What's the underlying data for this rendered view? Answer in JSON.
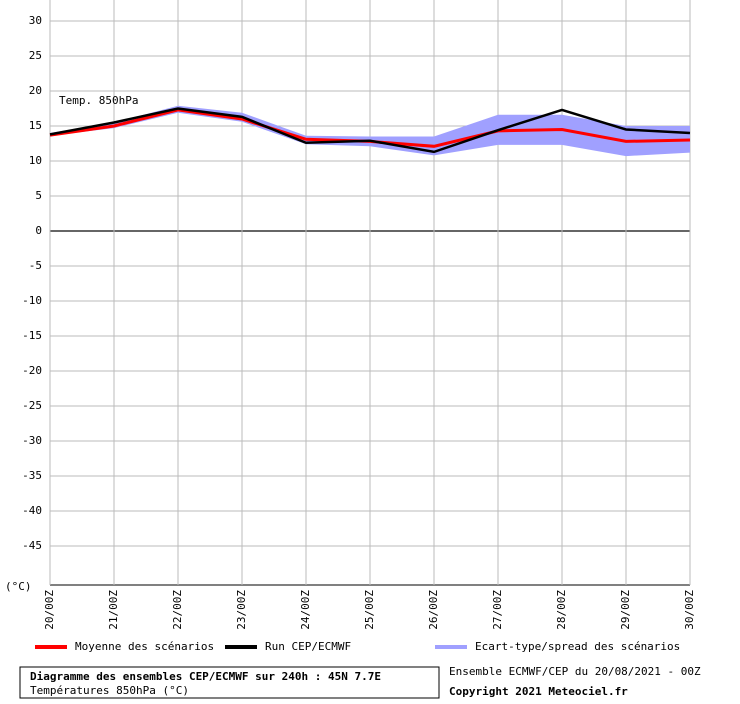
{
  "chart_data": {
    "type": "line",
    "annotation": "Temp. 850hPa",
    "y_label": "(°C)",
    "categories": [
      "20/00Z",
      "21/00Z",
      "22/00Z",
      "23/00Z",
      "24/00Z",
      "25/00Z",
      "26/00Z",
      "27/00Z",
      "28/00Z",
      "29/00Z",
      "30/00Z"
    ],
    "series": [
      {
        "name": "Moyenne des scénarios",
        "color": "#ff0000",
        "values": [
          13.7,
          15.0,
          17.3,
          16.0,
          13.1,
          12.8,
          12.1,
          14.3,
          14.5,
          12.8,
          13.0
        ]
      },
      {
        "name": "Run CEP/ECMWF",
        "color": "#000000",
        "values": [
          13.8,
          15.5,
          17.5,
          16.3,
          12.6,
          12.9,
          11.3,
          14.4,
          17.3,
          14.5,
          14.0
        ]
      },
      {
        "name": "Ecart-type/spread des scénarios",
        "color": "#a0a0ff",
        "values": [
          14.0,
          15.5,
          17.9,
          16.9,
          13.6,
          13.5,
          13.5,
          16.6,
          16.6,
          15.0,
          15.0
        ],
        "lower": [
          13.6,
          14.7,
          16.9,
          15.6,
          12.4,
          12.1,
          10.8,
          12.3,
          12.3,
          10.7,
          11.2
        ]
      }
    ],
    "ylim": [
      -50,
      30
    ],
    "yticks": [
      30,
      25,
      20,
      15,
      10,
      5,
      0,
      -5,
      -10,
      -15,
      -20,
      -25,
      -30,
      -35,
      -40,
      -45
    ],
    "grid": true,
    "footer": {
      "title": "Diagramme des ensembles CEP/ECMWF sur 240h : 45N 7.7E",
      "subtitle": "Températures 850hPa (°C)",
      "run": "Ensemble ECMWF/CEP du 20/08/2021 - 00Z",
      "copyright": "Copyright 2021 Meteociel.fr"
    }
  }
}
